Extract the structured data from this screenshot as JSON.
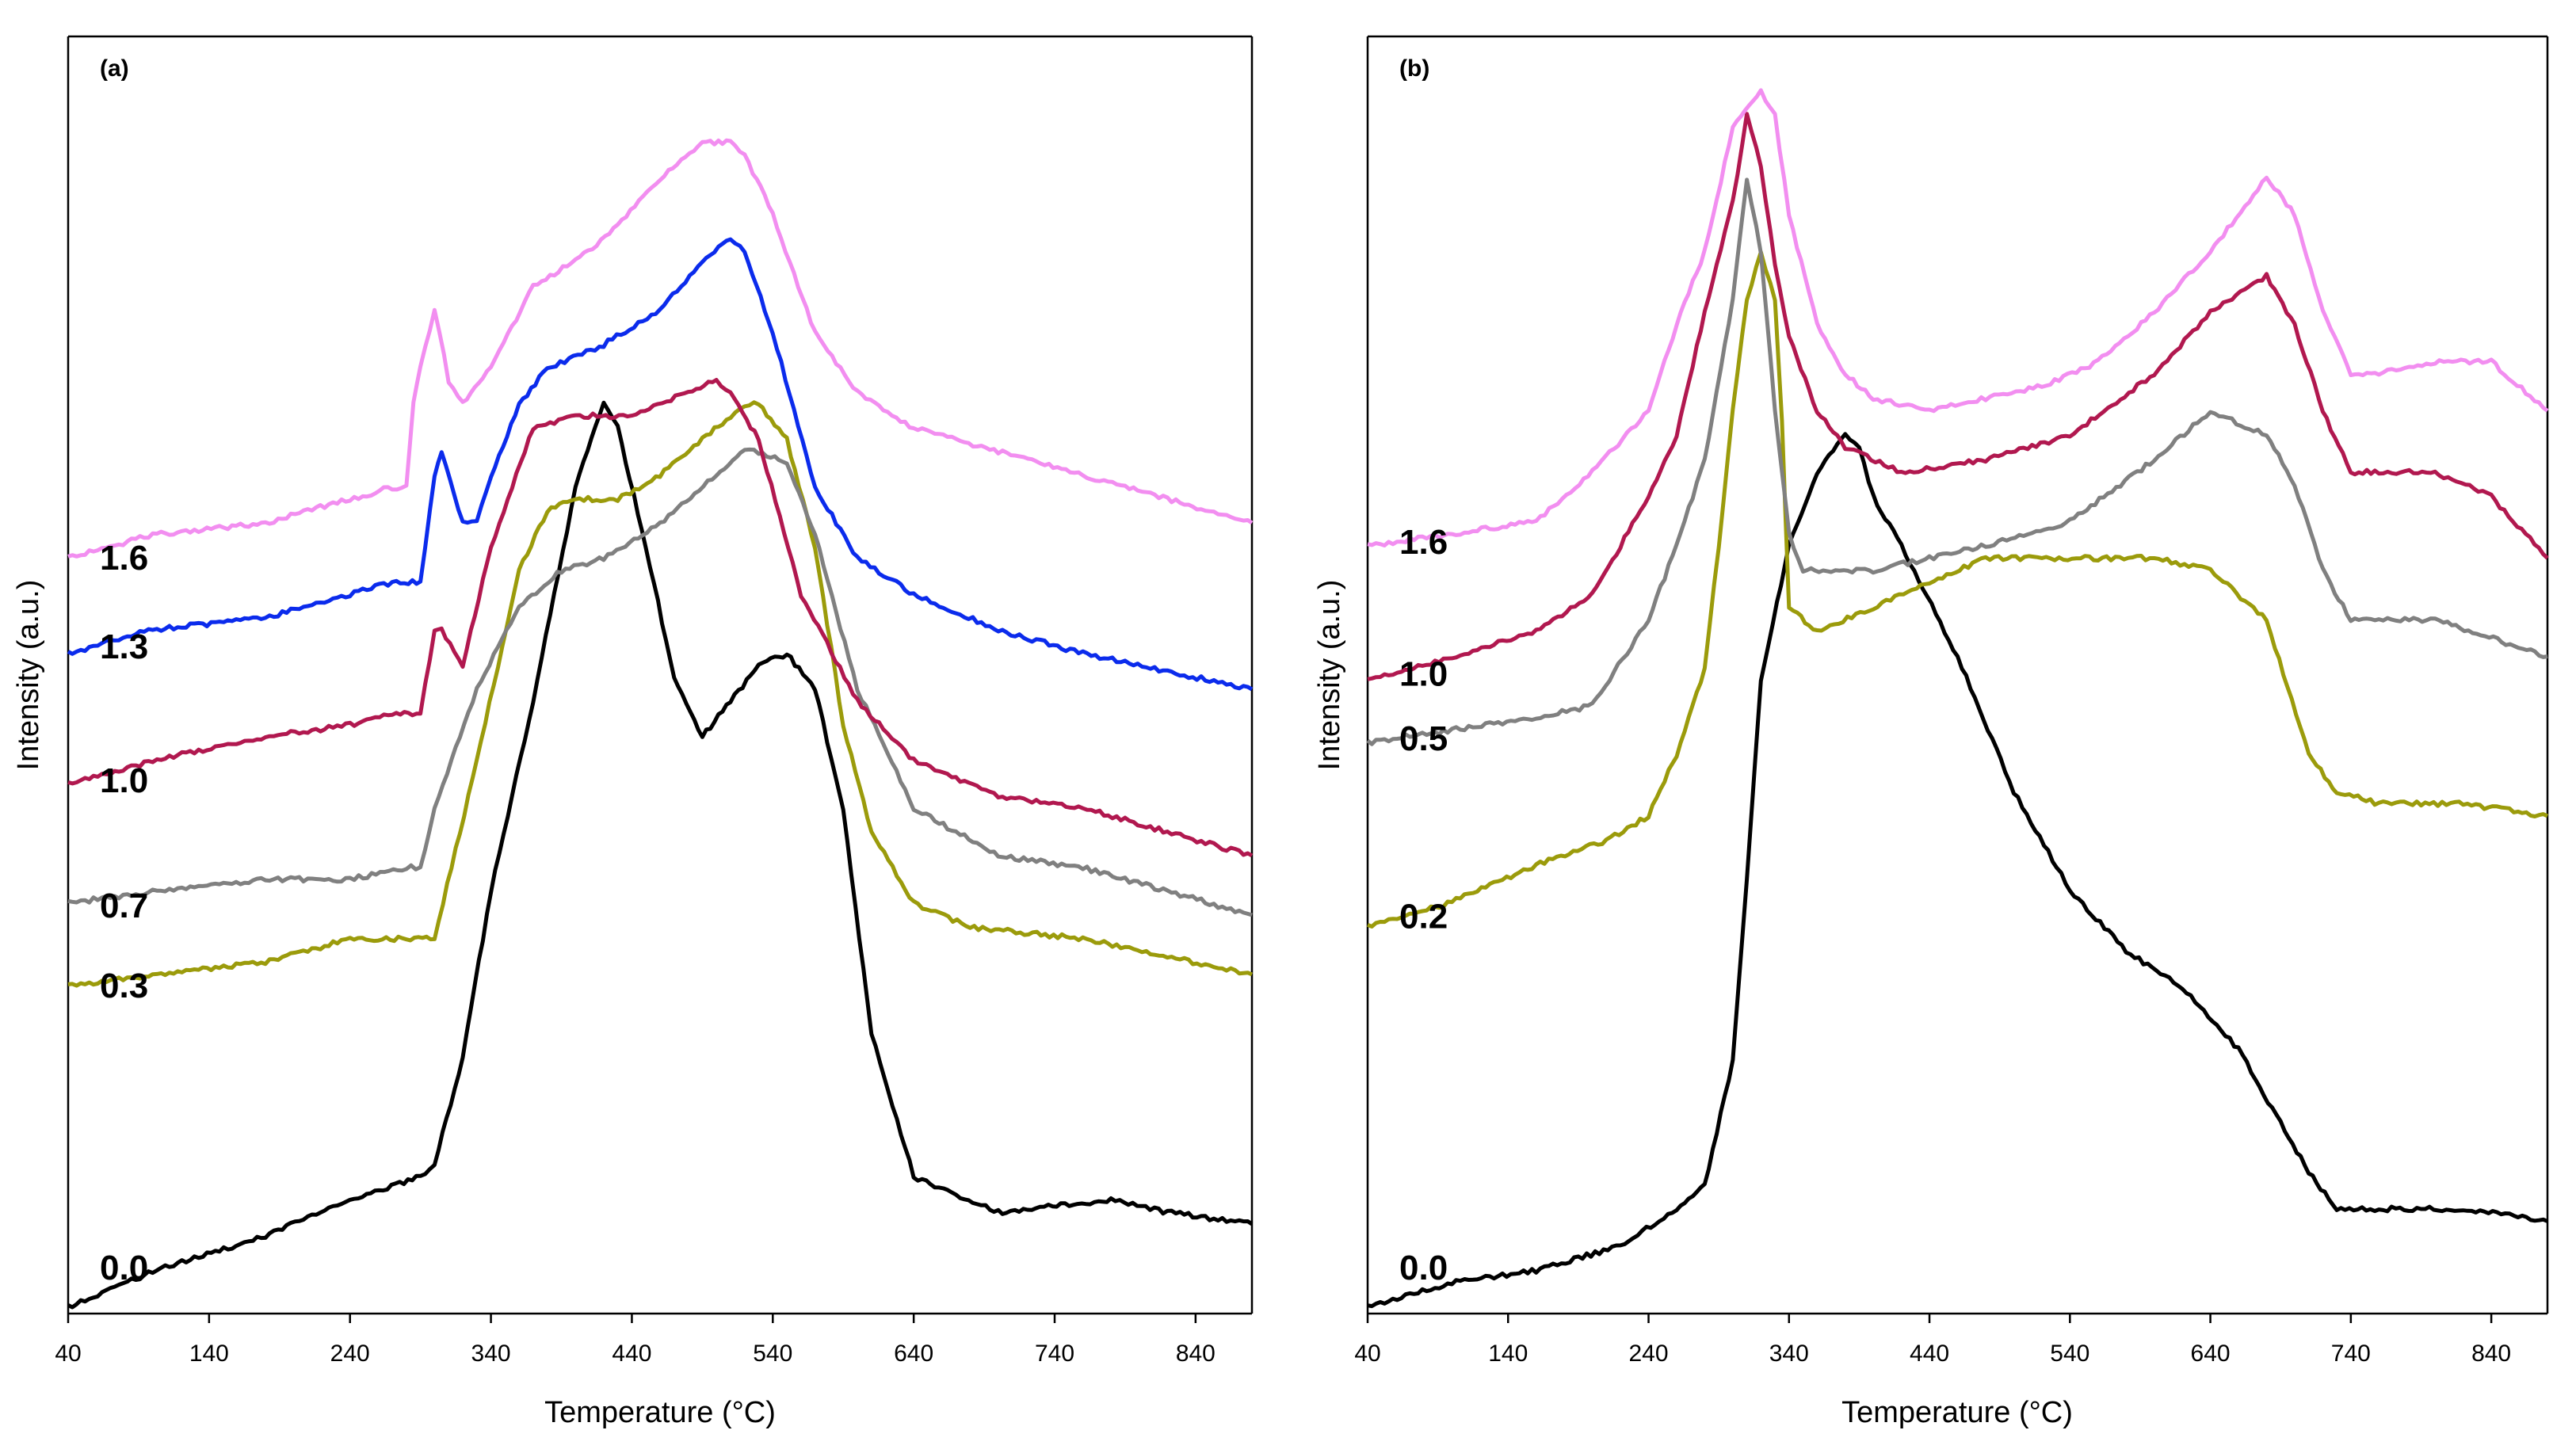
{
  "chart_data": [
    {
      "type": "line",
      "panel_label": "(a)",
      "xlabel": "Temperature (°C)",
      "ylabel": "Intensity (a.u.)",
      "xlim": [
        40,
        880
      ],
      "ylim": [
        0,
        100
      ],
      "xticks": [
        "40",
        "140",
        "240",
        "340",
        "440",
        "540",
        "640",
        "740",
        "840"
      ],
      "series": [
        {
          "name": "0.0",
          "color": "#000000",
          "x": [
            40,
            100,
            180,
            240,
            290,
            300,
            320,
            340,
            370,
            400,
            420,
            430,
            450,
            470,
            490,
            510,
            530,
            550,
            570,
            590,
            610,
            640,
            700,
            780,
            820,
            880
          ],
          "y": [
            0,
            3,
            6,
            9,
            11,
            12,
            21,
            35,
            51,
            69,
            76,
            74,
            64,
            53,
            48,
            51,
            54,
            55,
            52,
            42,
            23,
            11,
            8,
            9,
            8,
            7
          ]
        },
        {
          "name": "0.3",
          "color": "#9b9b0b",
          "x": [
            40,
            100,
            180,
            240,
            260,
            280,
            300,
            330,
            360,
            380,
            400,
            430,
            460,
            490,
            510,
            520,
            530,
            550,
            570,
            590,
            610,
            640,
            680,
            760,
            880
          ],
          "y": [
            27,
            28,
            29,
            31,
            31,
            31,
            31,
            46,
            62,
            67,
            68,
            68,
            70,
            73,
            75,
            76,
            76,
            73,
            64,
            49,
            40,
            34,
            32,
            31,
            28
          ]
        },
        {
          "name": "0.7",
          "color": "#808080",
          "x": [
            40,
            100,
            180,
            240,
            280,
            290,
            300,
            330,
            360,
            390,
            420,
            460,
            500,
            520,
            530,
            550,
            570,
            600,
            640,
            700,
            760,
            880
          ],
          "y": [
            34,
            35,
            36,
            36,
            37,
            37,
            42,
            52,
            59,
            62,
            63,
            66,
            70,
            72,
            72,
            71,
            65,
            52,
            42,
            38,
            37,
            33
          ]
        },
        {
          "name": "1.0",
          "color": "#b1184f",
          "x": [
            40,
            100,
            180,
            240,
            270,
            290,
            300,
            305,
            320,
            340,
            370,
            400,
            440,
            480,
            500,
            510,
            530,
            560,
            600,
            640,
            700,
            760,
            880
          ],
          "y": [
            44,
            46,
            48,
            49,
            50,
            50,
            57,
            57,
            54,
            64,
            74,
            75,
            75,
            77,
            78,
            77,
            73,
            60,
            51,
            46,
            43,
            42,
            38
          ]
        },
        {
          "name": "1.3",
          "color": "#0b2bec",
          "x": [
            40,
            100,
            180,
            240,
            270,
            290,
            300,
            305,
            320,
            330,
            340,
            360,
            380,
            420,
            460,
            490,
            510,
            520,
            540,
            570,
            600,
            640,
            700,
            760,
            880
          ],
          "y": [
            55,
            57,
            58,
            60,
            61,
            61,
            70,
            72,
            66,
            66,
            70,
            76,
            79,
            81,
            84,
            88,
            90,
            89,
            82,
            69,
            63,
            60,
            57,
            55,
            52
          ]
        },
        {
          "name": "1.6",
          "color": "#f28ef0",
          "x": [
            40,
            100,
            180,
            240,
            270,
            280,
            285,
            290,
            300,
            310,
            320,
            340,
            370,
            400,
            430,
            460,
            490,
            510,
            520,
            540,
            570,
            600,
            640,
            700,
            760,
            880
          ],
          "y": [
            63,
            65,
            66,
            68,
            69,
            69,
            76,
            79,
            84,
            78,
            76,
            79,
            86,
            88,
            91,
            95,
            98,
            98,
            97,
            92,
            82,
            77,
            74,
            72,
            70,
            66
          ]
        }
      ]
    },
    {
      "type": "line",
      "panel_label": "(b)",
      "xlabel": "Temperature (°C)",
      "ylabel": "Intensity (a.u.)",
      "xlim": [
        40,
        880
      ],
      "ylim": [
        0,
        100
      ],
      "xticks": [
        "40",
        "140",
        "240",
        "340",
        "440",
        "540",
        "640",
        "740",
        "840"
      ],
      "series": [
        {
          "name": "0.0",
          "color": "#000000",
          "x": [
            40,
            100,
            160,
            220,
            260,
            280,
            300,
            310,
            320,
            340,
            360,
            380,
            390,
            400,
            420,
            460,
            500,
            540,
            580,
            620,
            660,
            690,
            710,
            730,
            760,
            820,
            880
          ],
          "y": [
            0,
            2,
            3,
            5,
            8,
            10,
            20,
            35,
            51,
            62,
            68,
            71,
            70,
            66,
            62,
            53,
            42,
            34,
            29,
            26,
            21,
            15,
            11,
            8,
            8,
            8,
            7
          ]
        },
        {
          "name": "0.2",
          "color": "#9b9b0b",
          "x": [
            40,
            100,
            160,
            210,
            240,
            260,
            280,
            290,
            300,
            310,
            320,
            330,
            335,
            340,
            360,
            400,
            440,
            480,
            520,
            560,
            600,
            640,
            680,
            710,
            730,
            760,
            820,
            880
          ],
          "y": [
            31,
            33,
            36,
            38,
            40,
            45,
            52,
            62,
            73,
            82,
            86,
            82,
            72,
            57,
            55,
            57,
            59,
            61,
            61,
            61,
            61,
            60,
            56,
            45,
            42,
            41,
            41,
            40
          ]
        },
        {
          "name": "0.5",
          "color": "#808080",
          "x": [
            40,
            100,
            160,
            200,
            240,
            260,
            280,
            300,
            310,
            320,
            330,
            340,
            350,
            370,
            400,
            440,
            480,
            540,
            600,
            640,
            680,
            700,
            720,
            740,
            760,
            800,
            880
          ],
          "y": [
            46,
            47,
            48,
            49,
            56,
            62,
            69,
            82,
            92,
            86,
            73,
            63,
            60,
            60,
            60,
            61,
            62,
            64,
            69,
            73,
            71,
            67,
            60,
            56,
            56,
            56,
            53
          ]
        },
        {
          "name": "1.0",
          "color": "#b1184f",
          "x": [
            40,
            100,
            160,
            200,
            220,
            240,
            260,
            280,
            300,
            310,
            320,
            330,
            340,
            360,
            380,
            420,
            480,
            540,
            600,
            640,
            680,
            700,
            720,
            740,
            760,
            800,
            840,
            880
          ],
          "y": [
            51,
            53,
            55,
            58,
            62,
            66,
            71,
            81,
            90,
            97,
            93,
            85,
            79,
            73,
            70,
            68,
            69,
            71,
            76,
            81,
            84,
            80,
            73,
            68,
            68,
            68,
            66,
            61
          ]
        },
        {
          "name": "1.6",
          "color": "#f28ef0",
          "x": [
            40,
            100,
            160,
            200,
            240,
            260,
            280,
            300,
            320,
            330,
            340,
            360,
            380,
            400,
            440,
            480,
            520,
            560,
            600,
            640,
            680,
            700,
            720,
            740,
            760,
            800,
            840,
            880
          ],
          "y": [
            62,
            63,
            64,
            68,
            73,
            80,
            86,
            96,
            99,
            97,
            89,
            80,
            76,
            74,
            73,
            74,
            75,
            77,
            81,
            86,
            92,
            89,
            81,
            76,
            76,
            77,
            77,
            73
          ]
        }
      ]
    }
  ]
}
